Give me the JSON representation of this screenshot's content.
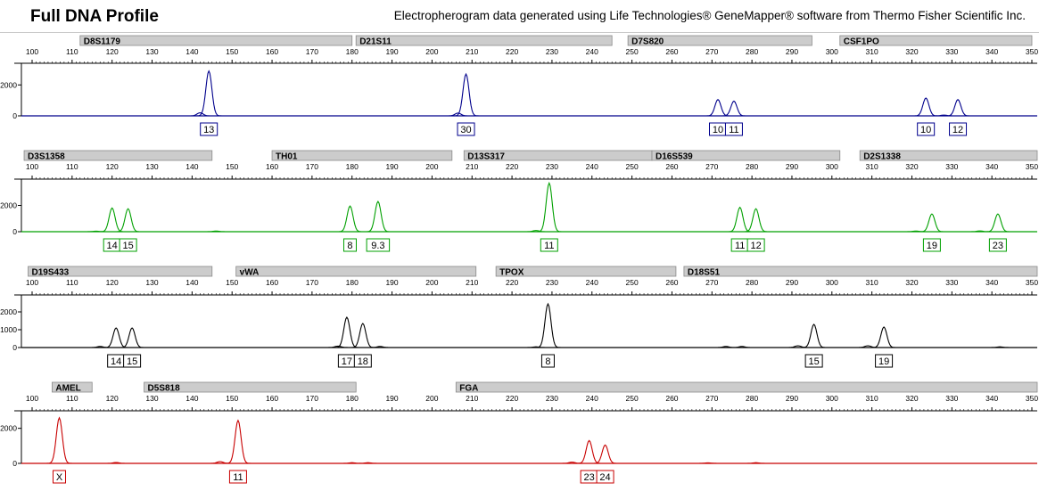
{
  "header": {
    "title": "Full DNA Profile",
    "subtitle": "Electropherogram data generated using Life Technologies® GeneMapper® software from Thermo Fisher Scientific Inc."
  },
  "colors": {
    "blue": "#00008c",
    "green": "#00a000",
    "black": "#000000",
    "red": "#c80000",
    "marker_box": "#cccccc"
  },
  "chart_data": [
    {
      "type": "line",
      "dye": "blue",
      "xlim": [
        100,
        350
      ],
      "x_ticks": [
        100,
        110,
        120,
        130,
        140,
        150,
        160,
        170,
        180,
        190,
        200,
        210,
        220,
        230,
        240,
        250,
        260,
        270,
        280,
        290,
        300,
        310,
        320,
        330,
        340,
        350
      ],
      "y_ticks": [
        0,
        2000
      ],
      "ylim": [
        0,
        3400
      ],
      "markers": [
        {
          "name": "D8S1179",
          "range": [
            112,
            180
          ]
        },
        {
          "name": "D21S11",
          "range": [
            181,
            245
          ]
        },
        {
          "name": "D7S820",
          "range": [
            249,
            295
          ]
        },
        {
          "name": "CSF1PO",
          "range": [
            302,
            350
          ]
        }
      ],
      "peaks": [
        {
          "x": 142,
          "h": 200
        },
        {
          "x": 144.2,
          "h": 2900,
          "label": "13"
        },
        {
          "x": 206.5,
          "h": 180
        },
        {
          "x": 208.5,
          "h": 2700,
          "label": "30"
        },
        {
          "x": 271.5,
          "h": 1050,
          "label": "10"
        },
        {
          "x": 275.5,
          "h": 950,
          "label": "11"
        },
        {
          "x": 323.5,
          "h": 1150,
          "label": "10"
        },
        {
          "x": 328,
          "h": 50
        },
        {
          "x": 331.5,
          "h": 1050,
          "label": "12"
        }
      ]
    },
    {
      "type": "line",
      "dye": "green",
      "xlim": [
        100,
        350
      ],
      "x_ticks": [
        100,
        110,
        120,
        130,
        140,
        150,
        160,
        170,
        180,
        190,
        200,
        210,
        220,
        230,
        240,
        250,
        260,
        270,
        280,
        290,
        300,
        310,
        320,
        330,
        340,
        350
      ],
      "y_ticks": [
        0,
        2000
      ],
      "ylim": [
        0,
        4000
      ],
      "markers": [
        {
          "name": "D3S1358",
          "range": [
            98,
            145
          ]
        },
        {
          "name": "TH01",
          "range": [
            160,
            205
          ]
        },
        {
          "name": "D13S317",
          "range": [
            208,
            255
          ]
        },
        {
          "name": "D16S539",
          "range": [
            255,
            302
          ]
        },
        {
          "name": "D2S1338",
          "range": [
            307,
            355
          ]
        }
      ],
      "peaks": [
        {
          "x": 116,
          "h": 40
        },
        {
          "x": 120,
          "h": 1800,
          "label": "14"
        },
        {
          "x": 124,
          "h": 1750,
          "label": "15"
        },
        {
          "x": 146,
          "h": 50
        },
        {
          "x": 179.5,
          "h": 1950,
          "label": "8"
        },
        {
          "x": 186.5,
          "h": 2300,
          "label": "9.3"
        },
        {
          "x": 226,
          "h": 90
        },
        {
          "x": 229.3,
          "h": 3700,
          "label": "11"
        },
        {
          "x": 277,
          "h": 1850,
          "label": "11"
        },
        {
          "x": 281,
          "h": 1750,
          "label": "12"
        },
        {
          "x": 321,
          "h": 50
        },
        {
          "x": 325,
          "h": 1350,
          "label": "19"
        },
        {
          "x": 337,
          "h": 60
        },
        {
          "x": 341.5,
          "h": 1350,
          "label": "23"
        }
      ]
    },
    {
      "type": "line",
      "dye": "black",
      "xlim": [
        100,
        350
      ],
      "x_ticks": [
        100,
        110,
        120,
        130,
        140,
        150,
        160,
        170,
        180,
        190,
        200,
        210,
        220,
        230,
        240,
        250,
        260,
        270,
        280,
        290,
        300,
        310,
        320,
        330,
        340,
        350
      ],
      "y_ticks": [
        0,
        1000,
        2000
      ],
      "ylim": [
        0,
        2950
      ],
      "markers": [
        {
          "name": "D19S433",
          "range": [
            99,
            145
          ]
        },
        {
          "name": "vWA",
          "range": [
            151,
            211
          ]
        },
        {
          "name": "TPOX",
          "range": [
            216,
            261
          ]
        },
        {
          "name": "D18S51",
          "range": [
            263,
            355
          ]
        }
      ],
      "peaks": [
        {
          "x": 117,
          "h": 60
        },
        {
          "x": 121,
          "h": 1100,
          "label": "14"
        },
        {
          "x": 125,
          "h": 1100,
          "label": "15"
        },
        {
          "x": 176.5,
          "h": 80
        },
        {
          "x": 178.7,
          "h": 1700,
          "label": "17"
        },
        {
          "x": 182.7,
          "h": 1350,
          "label": "18"
        },
        {
          "x": 187,
          "h": 60
        },
        {
          "x": 226,
          "h": 40
        },
        {
          "x": 229,
          "h": 2450,
          "label": "8"
        },
        {
          "x": 273.5,
          "h": 60
        },
        {
          "x": 277.5,
          "h": 60
        },
        {
          "x": 291.5,
          "h": 100
        },
        {
          "x": 295.5,
          "h": 1300,
          "label": "15"
        },
        {
          "x": 309,
          "h": 100
        },
        {
          "x": 313,
          "h": 1150,
          "label": "19"
        },
        {
          "x": 342,
          "h": 40
        }
      ]
    },
    {
      "type": "line",
      "dye": "red",
      "xlim": [
        100,
        350
      ],
      "x_ticks": [
        100,
        110,
        120,
        130,
        140,
        150,
        160,
        170,
        180,
        190,
        200,
        210,
        220,
        230,
        240,
        250,
        260,
        270,
        280,
        290,
        300,
        310,
        320,
        330,
        340,
        350
      ],
      "y_ticks": [
        0,
        2000
      ],
      "ylim": [
        0,
        3000
      ],
      "markers": [
        {
          "name": "AMEL",
          "range": [
            105,
            115
          ]
        },
        {
          "name": "D5S818",
          "range": [
            128,
            181
          ]
        },
        {
          "name": "FGA",
          "range": [
            206,
            355
          ]
        }
      ],
      "peaks": [
        {
          "x": 106.8,
          "h": 2600,
          "label": "X"
        },
        {
          "x": 121,
          "h": 50
        },
        {
          "x": 147,
          "h": 100
        },
        {
          "x": 151.5,
          "h": 2450,
          "label": "11"
        },
        {
          "x": 180,
          "h": 40
        },
        {
          "x": 184,
          "h": 40
        },
        {
          "x": 235,
          "h": 70
        },
        {
          "x": 239.3,
          "h": 1300,
          "label": "23"
        },
        {
          "x": 243.3,
          "h": 1050,
          "label": "24"
        },
        {
          "x": 269,
          "h": 30
        },
        {
          "x": 281,
          "h": 40
        }
      ]
    }
  ]
}
